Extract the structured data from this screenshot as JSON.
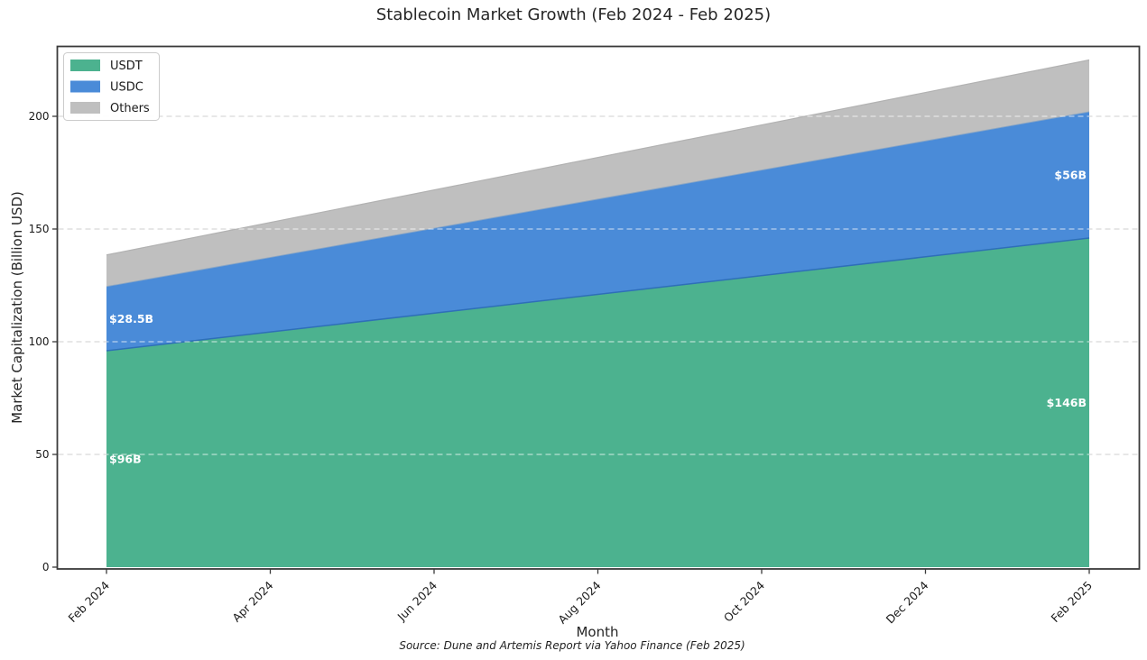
{
  "figure": {
    "title": "Stablecoin Market Growth (Feb 2024 - Feb 2025)",
    "source_note": "Source: Dune and Artemis Report via Yahoo Finance (Feb 2025)"
  },
  "chart_data": {
    "type": "area",
    "stacked": true,
    "title": "Stablecoin Market Growth (Feb 2024 - Feb 2025)",
    "xlabel": "Month",
    "ylabel": "Market Capitalization (Billion USD)",
    "x": [
      "Feb 2024",
      "Feb 2025"
    ],
    "interpolation": "linear",
    "series": [
      {
        "name": "USDT",
        "values": [
          96,
          146
        ],
        "color": "#4CB28F"
      },
      {
        "name": "USDC",
        "values": [
          28.5,
          56
        ],
        "color": "#4A8BD8"
      },
      {
        "name": "Others",
        "values": [
          14,
          23
        ],
        "color": "#BFBFBF"
      }
    ],
    "totals": [
      138.5,
      225
    ],
    "x_tick_labels": [
      "Feb 2024",
      "Apr 2024",
      "Jun 2024",
      "Aug 2024",
      "Oct 2024",
      "Dec 2024",
      "Feb 2025"
    ],
    "y_ticks": [
      0,
      50,
      100,
      150,
      200
    ],
    "ylim": [
      0,
      231
    ],
    "grid": "horizontal-dashed",
    "gridline_color_outside": "#CFCFCF",
    "gridline_color_over_area": "rgba(255,255,255,0.75)",
    "spine_color": "#3A3A3A",
    "legend": {
      "position": "upper-left"
    },
    "annotations": [
      {
        "text": "$96B",
        "x": "Feb 2024",
        "y": 48,
        "align": "start",
        "color": "#FFFFFF"
      },
      {
        "text": "$28.5B",
        "x": "Feb 2024",
        "y": 110.25,
        "align": "start",
        "color": "#FFFFFF"
      },
      {
        "text": "$146B",
        "x": "Feb 2025",
        "y": 73,
        "align": "end",
        "color": "#FFFFFF"
      },
      {
        "text": "$56B",
        "x": "Feb 2025",
        "y": 174,
        "align": "end",
        "color": "#FFFFFF"
      }
    ],
    "boundary_line_colors": [
      "#2E6FB8",
      "#8AA6C4",
      "#B2B2B2"
    ]
  }
}
